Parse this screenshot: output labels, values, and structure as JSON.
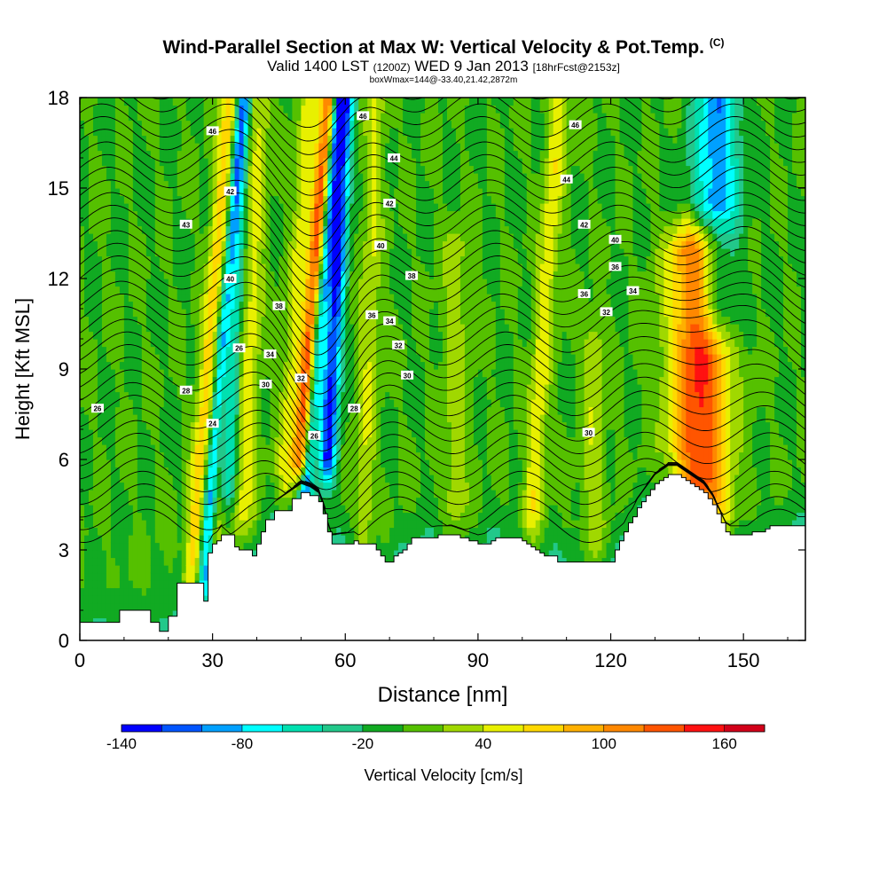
{
  "header": {
    "title": "Wind-Parallel Section at Max W: Vertical Velocity & Pot.Temp.",
    "title_mark": "(C)",
    "valid_prefix": "Valid 1400 LST",
    "valid_z": "(1200Z)",
    "valid_date": "WED 9 Jan 2013",
    "valid_fcst": "[18hrFcst@2153z]",
    "box_info": "boxWmax=144@-33.40,21.42,2872m"
  },
  "colors": {
    "palette": [
      "#0000ff",
      "#0055ff",
      "#00a0ff",
      "#00ffff",
      "#00e0b0",
      "#22c88a",
      "#11aa22",
      "#55c000",
      "#a0d800",
      "#e8f000",
      "#ffd800",
      "#ffb000",
      "#ff8800",
      "#ff5500",
      "#ff1111",
      "#d20019"
    ],
    "ground": "#ffffff",
    "contour": "#000000"
  },
  "chart_data": {
    "type": "heatmap",
    "title": "Wind-Parallel Section at Max W: Vertical Velocity & Pot.Temp.",
    "xlabel": "Distance [nm]",
    "ylabel": "Height [Kft MSL]",
    "xlim": [
      0,
      164
    ],
    "ylim": [
      0,
      18
    ],
    "x_ticks": [
      "0",
      "30",
      "60",
      "90",
      "120",
      "150"
    ],
    "y_ticks": [
      "0",
      "3",
      "6",
      "9",
      "12",
      "15",
      "18"
    ],
    "colorbar": {
      "label": "Vertical Velocity [cm/s]",
      "ticks": [
        "-140",
        "-80",
        "-20",
        "40",
        "100",
        "160"
      ],
      "min": -140,
      "max": 180,
      "step": 20
    },
    "terrain": {
      "x": [
        0,
        9,
        16,
        18,
        20,
        22,
        28,
        29,
        30,
        31,
        32,
        35,
        36,
        39,
        40,
        41,
        42,
        44,
        48,
        50,
        52,
        54,
        55,
        56,
        57,
        62,
        63,
        64,
        67,
        68,
        69,
        70,
        71,
        72,
        73,
        74,
        75,
        81,
        84,
        86,
        88,
        90,
        93,
        94,
        96,
        99,
        100,
        101,
        102,
        103,
        104,
        105,
        106,
        107,
        108,
        109,
        110,
        111,
        112,
        113,
        114,
        115,
        116,
        117,
        118,
        119,
        120,
        121,
        122,
        123,
        124,
        125,
        126,
        127,
        128,
        129,
        130,
        131,
        132,
        133,
        134,
        135,
        136,
        137,
        138,
        139,
        140,
        141,
        142,
        143,
        144,
        145,
        146,
        147,
        148,
        149,
        150,
        151,
        152,
        153,
        154,
        155,
        156,
        157,
        158,
        159,
        160,
        161,
        162,
        163,
        164
      ],
      "height_kft": [
        0.6,
        1.0,
        0.6,
        0.3,
        0.8,
        1.9,
        1.3,
        2.9,
        3.2,
        3.3,
        3.5,
        3.1,
        3.0,
        2.8,
        3.2,
        3.6,
        4.0,
        4.3,
        4.7,
        4.9,
        4.8,
        4.6,
        4.2,
        3.6,
        3.2,
        3.3,
        3.2,
        3.2,
        3.0,
        2.8,
        2.6,
        2.6,
        2.8,
        2.9,
        3.0,
        3.2,
        3.4,
        3.5,
        3.5,
        3.4,
        3.3,
        3.2,
        3.3,
        3.4,
        3.4,
        3.4,
        3.3,
        3.2,
        3.1,
        3.0,
        2.9,
        2.8,
        2.8,
        2.8,
        2.6,
        2.6,
        2.6,
        2.6,
        2.6,
        2.6,
        2.6,
        2.6,
        2.6,
        2.6,
        2.6,
        2.6,
        2.6,
        3.0,
        3.3,
        3.6,
        3.9,
        4.1,
        4.4,
        4.6,
        4.8,
        5.0,
        5.2,
        5.3,
        5.4,
        5.5,
        5.5,
        5.5,
        5.4,
        5.3,
        5.2,
        5.1,
        5.0,
        4.9,
        4.7,
        4.5,
        4.2,
        3.9,
        3.6,
        3.5,
        3.5,
        3.5,
        3.5,
        3.5,
        3.6,
        3.6,
        3.6,
        3.7,
        3.8,
        3.8,
        3.8,
        3.8,
        3.8,
        3.8,
        3.8,
        3.8,
        3.8
      ]
    },
    "vertical_velocity_features": [
      {
        "x": 25,
        "base_kft": 2,
        "top_kft": 18,
        "w_cm_s": 70,
        "width_nm": 2.0,
        "tilt_nm_per_kft": 0.55
      },
      {
        "x": 28,
        "base_kft": 2,
        "top_kft": 18,
        "w_cm_s": -90,
        "width_nm": 1.4,
        "tilt_nm_per_kft": 0.55
      },
      {
        "x": 31,
        "base_kft": 3,
        "top_kft": 18,
        "w_cm_s": 55,
        "width_nm": 1.8,
        "tilt_nm_per_kft": 0.35
      },
      {
        "x": 33,
        "base_kft": 5,
        "top_kft": 18,
        "w_cm_s": -85,
        "width_nm": 2.0,
        "tilt_nm_per_kft": 0.3
      },
      {
        "x": 37,
        "base_kft": 4,
        "top_kft": 18,
        "w_cm_s": 50,
        "width_nm": 2.4,
        "tilt_nm_per_kft": 0.25
      },
      {
        "x": 46,
        "base_kft": 5,
        "top_kft": 18,
        "w_cm_s": 45,
        "width_nm": 2.0,
        "tilt_nm_per_kft": 0.45
      },
      {
        "x": 51,
        "base_kft": 5,
        "top_kft": 18,
        "w_cm_s": -110,
        "width_nm": 1.6,
        "tilt_nm_per_kft": 0.55
      },
      {
        "x": 50,
        "base_kft": 6,
        "top_kft": 18,
        "w_cm_s": 150,
        "width_nm": 2.0,
        "tilt_nm_per_kft": 0.53
      },
      {
        "x": 56,
        "base_kft": 6,
        "top_kft": 18,
        "w_cm_s": -125,
        "width_nm": 2.0,
        "tilt_nm_per_kft": 0.33
      },
      {
        "x": 64,
        "base_kft": 3,
        "top_kft": 18,
        "w_cm_s": 40,
        "width_nm": 2.2,
        "tilt_nm_per_kft": 0.2
      },
      {
        "x": 85,
        "base_kft": 3,
        "top_kft": 13,
        "w_cm_s": 30,
        "width_nm": 3.0,
        "tilt_nm_per_kft": 0.0
      },
      {
        "x": 102,
        "base_kft": 4,
        "top_kft": 18,
        "w_cm_s": 55,
        "width_nm": 2.2,
        "tilt_nm_per_kft": 0.45
      },
      {
        "x": 116,
        "base_kft": 3,
        "top_kft": 10,
        "w_cm_s": 35,
        "width_nm": 2.6,
        "tilt_nm_per_kft": 0.0
      },
      {
        "x": 140,
        "base_kft": 4,
        "top_kft": 13,
        "w_cm_s": 144,
        "width_nm": 6.5,
        "tilt_nm_per_kft": 0.0
      },
      {
        "x": 144,
        "base_kft": 11,
        "top_kft": 18,
        "w_cm_s": -95,
        "width_nm": 5.0,
        "tilt_nm_per_kft": 0.0
      }
    ],
    "theta_contour_labels": [
      {
        "text": "26",
        "x": 4,
        "y": 7.7
      },
      {
        "text": "28",
        "x": 24,
        "y": 8.3
      },
      {
        "text": "24",
        "x": 30,
        "y": 7.2
      },
      {
        "text": "26",
        "x": 36,
        "y": 9.7
      },
      {
        "text": "30",
        "x": 42,
        "y": 8.5
      },
      {
        "text": "34",
        "x": 43,
        "y": 9.5
      },
      {
        "text": "38",
        "x": 45,
        "y": 11.1
      },
      {
        "text": "32",
        "x": 50,
        "y": 8.7
      },
      {
        "text": "40",
        "x": 34,
        "y": 12.0
      },
      {
        "text": "42",
        "x": 34,
        "y": 14.9
      },
      {
        "text": "43",
        "x": 24,
        "y": 13.8
      },
      {
        "text": "46",
        "x": 30,
        "y": 16.9
      },
      {
        "text": "46",
        "x": 64,
        "y": 17.4
      },
      {
        "text": "44",
        "x": 71,
        "y": 16.0
      },
      {
        "text": "42",
        "x": 70,
        "y": 14.5
      },
      {
        "text": "40",
        "x": 68,
        "y": 13.1
      },
      {
        "text": "36",
        "x": 66,
        "y": 10.8
      },
      {
        "text": "34",
        "x": 70,
        "y": 10.6
      },
      {
        "text": "32",
        "x": 72,
        "y": 9.8
      },
      {
        "text": "30",
        "x": 74,
        "y": 8.8
      },
      {
        "text": "28",
        "x": 62,
        "y": 7.7
      },
      {
        "text": "26",
        "x": 53,
        "y": 6.8
      },
      {
        "text": "38",
        "x": 75,
        "y": 12.1
      },
      {
        "text": "46",
        "x": 112,
        "y": 17.1
      },
      {
        "text": "44",
        "x": 110,
        "y": 15.3
      },
      {
        "text": "42",
        "x": 114,
        "y": 13.8
      },
      {
        "text": "40",
        "x": 121,
        "y": 13.3
      },
      {
        "text": "36",
        "x": 121,
        "y": 12.4
      },
      {
        "text": "36",
        "x": 114,
        "y": 11.5
      },
      {
        "text": "34",
        "x": 125,
        "y": 11.6
      },
      {
        "text": "32",
        "x": 119,
        "y": 10.9
      },
      {
        "text": "30",
        "x": 115,
        "y": 6.9
      }
    ],
    "legend": "bottom colorbar",
    "grid": false
  }
}
